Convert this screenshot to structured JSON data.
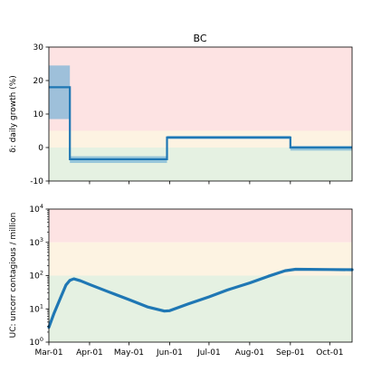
{
  "chart_data": [
    {
      "type": "line",
      "title": "BC",
      "ylabel": "δ: daily growth (%)",
      "xlabel": "",
      "ylim": [
        -10,
        30
      ],
      "yticks": [
        -10,
        0,
        10,
        20,
        30
      ],
      "bands": [
        {
          "from": 5,
          "to": 30,
          "color": "#fde3e3"
        },
        {
          "from": 0,
          "to": 5,
          "color": "#fdf3e2"
        },
        {
          "from": -10,
          "to": 0,
          "color": "#e5f1e2"
        }
      ],
      "series": [
        {
          "color": "#1f77b4",
          "band_color": "#6baed6",
          "segments": [
            {
              "x0": "2020-03-01",
              "x1": "2020-03-17",
              "y": 18.0,
              "lo": 8.5,
              "hi": 24.5
            },
            {
              "x0": "2020-03-17",
              "x1": "2020-05-30",
              "y": -3.5,
              "lo": -4.6,
              "hi": -2.6
            },
            {
              "x0": "2020-05-30",
              "x1": "2020-09-01",
              "y": 3.0,
              "lo": 2.5,
              "hi": 3.5
            },
            {
              "x0": "2020-09-01",
              "x1": "2020-10-18",
              "y": 0.0,
              "lo": -0.9,
              "hi": 0.5
            }
          ]
        }
      ],
      "grid": false
    },
    {
      "type": "line",
      "ylabel": "UC: uncorr contagious / million",
      "xlabel": "",
      "yscale": "log",
      "ylim": [
        1,
        10000
      ],
      "yticks": [
        {
          "v": 1,
          "base": "10",
          "exp": "0"
        },
        {
          "v": 10,
          "base": "10",
          "exp": "1"
        },
        {
          "v": 100,
          "base": "10",
          "exp": "2"
        },
        {
          "v": 1000,
          "base": "10",
          "exp": "3"
        },
        {
          "v": 10000,
          "base": "10",
          "exp": "4"
        }
      ],
      "bands": [
        {
          "from": 1000,
          "to": 10000,
          "color": "#fde3e3"
        },
        {
          "from": 100,
          "to": 1000,
          "color": "#fdf3e2"
        },
        {
          "from": 1,
          "to": 100,
          "color": "#e5f1e2"
        }
      ],
      "series": [
        {
          "color": "#1f77b4",
          "points": [
            [
              "2020-03-01",
              2.8
            ],
            [
              "2020-03-05",
              7.5
            ],
            [
              "2020-03-10",
              22
            ],
            [
              "2020-03-14",
              52
            ],
            [
              "2020-03-17",
              72
            ],
            [
              "2020-03-20",
              80
            ],
            [
              "2020-03-25",
              70
            ],
            [
              "2020-04-01",
              54
            ],
            [
              "2020-04-15",
              33
            ],
            [
              "2020-05-01",
              19
            ],
            [
              "2020-05-15",
              11.5
            ],
            [
              "2020-05-28",
              8.6
            ],
            [
              "2020-06-01",
              8.8
            ],
            [
              "2020-06-15",
              14
            ],
            [
              "2020-07-01",
              23
            ],
            [
              "2020-07-15",
              37
            ],
            [
              "2020-08-01",
              60
            ],
            [
              "2020-08-15",
              95
            ],
            [
              "2020-08-28",
              140
            ],
            [
              "2020-09-05",
              155
            ],
            [
              "2020-09-15",
              154
            ],
            [
              "2020-10-01",
              152
            ],
            [
              "2020-10-18",
              150
            ]
          ]
        }
      ],
      "grid": false
    }
  ],
  "x_axis": {
    "min": "2020-03-01",
    "max": "2020-10-18",
    "ticks": [
      {
        "date": "2020-03-01",
        "label": "Mar-01"
      },
      {
        "date": "2020-04-01",
        "label": "Apr-01"
      },
      {
        "date": "2020-05-01",
        "label": "May-01"
      },
      {
        "date": "2020-06-01",
        "label": "Jun-01"
      },
      {
        "date": "2020-07-01",
        "label": "Jul-01"
      },
      {
        "date": "2020-08-01",
        "label": "Aug-01"
      },
      {
        "date": "2020-09-01",
        "label": "Sep-01"
      },
      {
        "date": "2020-10-01",
        "label": "Oct-01"
      }
    ]
  }
}
